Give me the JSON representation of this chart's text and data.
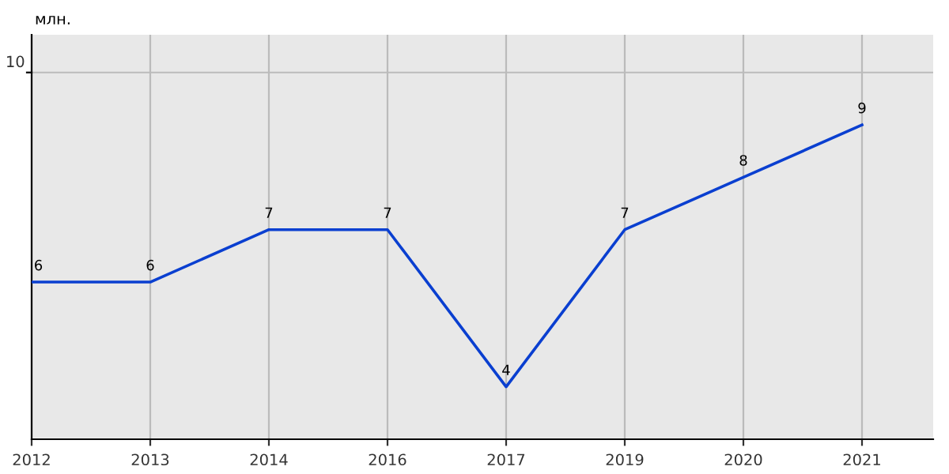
{
  "chart_data": {
    "type": "line",
    "ylabel": "млн.",
    "categories": [
      "2012",
      "2013",
      "2014",
      "2016",
      "2017",
      "2019",
      "2020",
      "2021"
    ],
    "series": [
      {
        "color": "#0a3fd0",
        "values": [
          6,
          6,
          7,
          7,
          4,
          7,
          8,
          9
        ]
      }
    ],
    "ylim": [
      3,
      10.72
    ],
    "ref_lines": [
      {
        "axis": "y",
        "value": 10,
        "label": "10",
        "color": "#bbbbbb"
      }
    ],
    "grid": "x",
    "data_labels": true,
    "marker": "none",
    "line_style": "solid",
    "legend": false
  }
}
